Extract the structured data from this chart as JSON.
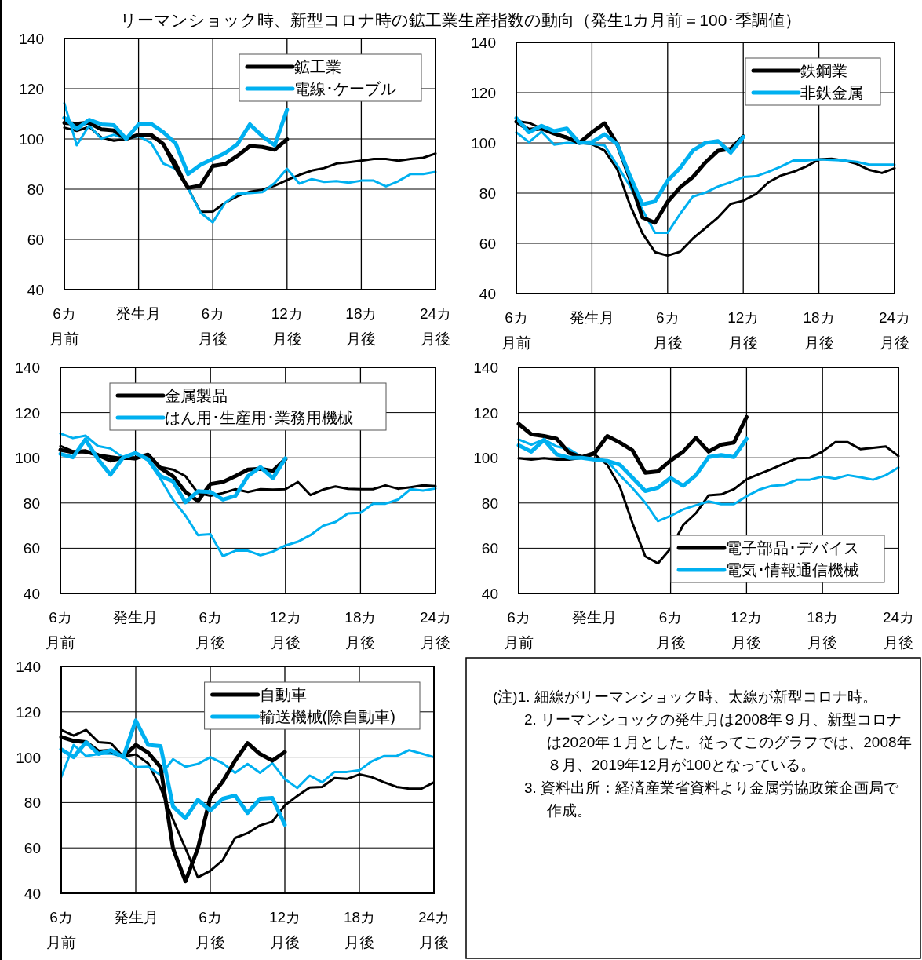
{
  "chart_data": [
    {
      "type": "line",
      "title": "リーマンショック時、新型コロナ時の鉱工業生産指数の動向（発生1カ月前＝100･季調値）",
      "x": [
        -6,
        -5,
        -4,
        -3,
        -2,
        -1,
        0,
        1,
        2,
        3,
        4,
        5,
        6,
        7,
        8,
        9,
        10,
        11,
        12,
        13,
        14,
        15,
        16,
        17,
        18,
        19,
        20,
        21,
        22,
        23,
        24
      ],
      "xlim": [
        -6,
        24
      ],
      "xticks": [
        {
          "value": -6,
          "label": "6カ月前"
        },
        {
          "value": 0,
          "label": "発生月"
        },
        {
          "value": 6,
          "label": "6カ月後"
        },
        {
          "value": 12,
          "label": "12カ月後"
        },
        {
          "value": 18,
          "label": "18カ月後"
        },
        {
          "value": 24,
          "label": "24カ月後"
        }
      ],
      "ylim": [
        40,
        140
      ],
      "yticks": [
        40,
        60,
        80,
        100,
        120,
        140
      ],
      "grid": true,
      "legend": "top right",
      "series": [
        {
          "color": "#000000",
          "values": [
            104.5,
            103.2,
            104.8,
            100.6,
            99.3,
            100,
            101.7,
            101,
            98,
            90.7,
            80.3,
            71,
            71.1,
            74.6,
            77.2,
            79,
            79.8,
            81.4,
            83.6,
            85.7,
            87.4,
            88.4,
            90.2,
            90.7,
            91.3,
            92,
            92,
            91.3,
            92,
            92.5,
            94.2
          ]
        },
        {
          "color": "#00b0f0",
          "values": [
            114.2,
            97.5,
            105.3,
            100.1,
            101.7,
            100,
            101.1,
            98.5,
            90.2,
            88.1,
            80.3,
            70.7,
            66.8,
            74.6,
            78.2,
            78.4,
            78.8,
            82.4,
            88.1,
            82.2,
            84,
            82.9,
            83.2,
            82.6,
            83.4,
            83.4,
            81.1,
            83.2,
            86,
            86,
            86.9
          ]
        },
        {
          "name": "鉱工業",
          "color": "#000000",
          "values": [
            106.4,
            106,
            106.5,
            103.8,
            103.4,
            100,
            101.7,
            101.7,
            98,
            88.6,
            80.5,
            81.4,
            89.2,
            90,
            93.3,
            97.2,
            96.8,
            95.7,
            99.9,
            null,
            null,
            null,
            null,
            null,
            null,
            null,
            null,
            null,
            null,
            null,
            null
          ]
        },
        {
          "name": "電線･ケーブル",
          "color": "#00b0f0",
          "values": [
            108.4,
            104,
            107.6,
            105.8,
            105.5,
            100,
            105.8,
            106.1,
            102.7,
            98.2,
            86,
            89.7,
            92,
            94.4,
            98,
            105.8,
            101.1,
            97.5,
            111.6,
            null,
            null,
            null,
            null,
            null,
            null,
            null,
            null,
            null,
            null,
            null,
            null
          ]
        }
      ]
    },
    {
      "type": "line",
      "x": [
        -6,
        -5,
        -4,
        -3,
        -2,
        -1,
        0,
        1,
        2,
        3,
        4,
        5,
        6,
        7,
        8,
        9,
        10,
        11,
        12,
        13,
        14,
        15,
        16,
        17,
        18,
        19,
        20,
        21,
        22,
        23,
        24
      ],
      "xlim": [
        -6,
        24
      ],
      "xticks": [
        {
          "value": -6,
          "label": "6カ月前"
        },
        {
          "value": 0,
          "label": "発生月"
        },
        {
          "value": 6,
          "label": "6カ月後"
        },
        {
          "value": 12,
          "label": "12カ月後"
        },
        {
          "value": 18,
          "label": "18カ月後"
        },
        {
          "value": 24,
          "label": "24カ月後"
        }
      ],
      "ylim": [
        40,
        140
      ],
      "yticks": [
        40,
        60,
        80,
        100,
        120,
        140
      ],
      "grid": true,
      "legend": "top right",
      "series": [
        {
          "color": "#000000",
          "values": [
            108.7,
            108,
            105.7,
            103.7,
            102.4,
            100,
            99.5,
            96.9,
            89.6,
            75.5,
            64,
            56.5,
            55.1,
            56.7,
            61.9,
            66.1,
            70.3,
            75.7,
            77,
            79.6,
            84.3,
            87,
            88.5,
            90.6,
            93.4,
            93.7,
            93,
            91.6,
            89.2,
            88,
            89.9
          ]
        },
        {
          "color": "#00b0f0",
          "values": [
            104.2,
            100.3,
            104.5,
            99.3,
            100,
            100,
            99.5,
            99,
            91.1,
            82.8,
            73.4,
            64.2,
            64.2,
            71.8,
            78.6,
            80.2,
            82.6,
            84.3,
            86.4,
            86.7,
            88.5,
            90.6,
            93,
            93,
            93.4,
            93.2,
            93,
            92.4,
            91.3,
            91.3,
            91.3
          ]
        },
        {
          "name": "鉄鋼業",
          "color": "#000000",
          "values": [
            108.4,
            105.2,
            105.7,
            103.7,
            102.1,
            100,
            104.2,
            107.8,
            99.5,
            85.9,
            70.3,
            68.2,
            76.5,
            82.3,
            86.4,
            92.2,
            96.9,
            97.6,
            102.6,
            null,
            null,
            null,
            null,
            null,
            null,
            null,
            null,
            null,
            null,
            null,
            null
          ]
        },
        {
          "name": "非鉄金属",
          "color": "#00b0f0",
          "values": [
            109.9,
            104.2,
            106.8,
            104.7,
            105.7,
            100,
            100.3,
            103.4,
            99.5,
            87,
            75.5,
            76.7,
            84.9,
            90.1,
            96.9,
            100,
            100.7,
            96.1,
            102.4,
            null,
            null,
            null,
            null,
            null,
            null,
            null,
            null,
            null,
            null,
            null,
            null
          ]
        }
      ]
    },
    {
      "type": "line",
      "x": [
        -6,
        -5,
        -4,
        -3,
        -2,
        -1,
        0,
        1,
        2,
        3,
        4,
        5,
        6,
        7,
        8,
        9,
        10,
        11,
        12,
        13,
        14,
        15,
        16,
        17,
        18,
        19,
        20,
        21,
        22,
        23,
        24
      ],
      "xlim": [
        -6,
        24
      ],
      "xticks": [
        {
          "value": -6,
          "label": "6カ月前"
        },
        {
          "value": 0,
          "label": "発生月"
        },
        {
          "value": 6,
          "label": "6カ月後"
        },
        {
          "value": 12,
          "label": "12カ月後"
        },
        {
          "value": 18,
          "label": "18カ月後"
        },
        {
          "value": 24,
          "label": "24カ月後"
        }
      ],
      "ylim": [
        40,
        140
      ],
      "yticks": [
        40,
        60,
        80,
        100,
        120,
        140
      ],
      "grid": true,
      "legend": "top",
      "series": [
        {
          "color": "#000000",
          "values": [
            105.2,
            102.9,
            102.3,
            101.4,
            100.6,
            99.8,
            99.4,
            101.7,
            95.9,
            94.8,
            91.9,
            84.4,
            83.2,
            84.4,
            86.1,
            84.9,
            86.1,
            85.9,
            86.1,
            89.3,
            83.5,
            85.9,
            87.3,
            86.3,
            86.1,
            86.1,
            87.8,
            86.3,
            87,
            87.8,
            87.5
          ]
        },
        {
          "color": "#00b0f0",
          "values": [
            110.7,
            108.7,
            109.8,
            105.2,
            104.1,
            100.2,
            102.1,
            98.8,
            90.7,
            81.5,
            74.5,
            65.8,
            66.2,
            56.5,
            58.9,
            58.9,
            56.9,
            58.5,
            61.2,
            62.9,
            65.8,
            69.9,
            71.6,
            75.4,
            75.7,
            79.7,
            79.7,
            81.5,
            86.1,
            85.5,
            86.4
          ]
        },
        {
          "name": "金属製品",
          "color": "#000000",
          "values": [
            103.5,
            102.5,
            102.9,
            101.2,
            98.8,
            100,
            99.8,
            101.4,
            95.4,
            91.9,
            84.9,
            80.9,
            88.4,
            89.3,
            91.9,
            94.8,
            95.1,
            94.2,
            99.4,
            null,
            null,
            null,
            null,
            null,
            null,
            null,
            null,
            null,
            null,
            null,
            null
          ]
        },
        {
          "name": "はん用･生産用･業務用機械",
          "color": "#00b0f0",
          "values": [
            101.7,
            100.2,
            108.1,
            99.4,
            92.5,
            100,
            102.1,
            99.4,
            91.9,
            89.6,
            80.3,
            85.2,
            84.9,
            81.5,
            83.2,
            91.9,
            95.9,
            91,
            99.8,
            null,
            null,
            null,
            null,
            null,
            null,
            null,
            null,
            null,
            null,
            null,
            null
          ]
        }
      ]
    },
    {
      "type": "line",
      "x": [
        -6,
        -5,
        -4,
        -3,
        -2,
        -1,
        0,
        1,
        2,
        3,
        4,
        5,
        6,
        7,
        8,
        9,
        10,
        11,
        12,
        13,
        14,
        15,
        16,
        17,
        18,
        19,
        20,
        21,
        22,
        23,
        24
      ],
      "xlim": [
        -6,
        24
      ],
      "xticks": [
        {
          "value": -6,
          "label": "6カ月前"
        },
        {
          "value": 0,
          "label": "発生月"
        },
        {
          "value": 6,
          "label": "6カ月後"
        },
        {
          "value": 12,
          "label": "12カ月後"
        },
        {
          "value": 18,
          "label": "18カ月後"
        },
        {
          "value": 24,
          "label": "24カ月後"
        }
      ],
      "ylim": [
        40,
        140
      ],
      "yticks": [
        40,
        60,
        80,
        100,
        120,
        140
      ],
      "grid": true,
      "legend": "bottom right",
      "series": [
        {
          "color": "#000000",
          "values": [
            99.8,
            99.2,
            99.8,
            99.2,
            99.2,
            100,
            101.5,
            96.9,
            87.1,
            70.9,
            56.4,
            53.3,
            59.9,
            70.3,
            75.5,
            83.4,
            83.8,
            86.1,
            90.5,
            92.8,
            95.1,
            97.5,
            99.8,
            100,
            102.7,
            106.9,
            106.9,
            103.8,
            104.4,
            105,
            100.7
          ]
        },
        {
          "color": "#00b0f0",
          "values": [
            108.1,
            105.8,
            108.1,
            105,
            103.8,
            100.3,
            99.5,
            98.6,
            92.3,
            86.5,
            80.1,
            72,
            74.3,
            77.2,
            79,
            80.7,
            79.5,
            79.5,
            83,
            85.9,
            87.6,
            88,
            90.3,
            90.3,
            91.7,
            90.8,
            92.3,
            91.4,
            90.3,
            92.3,
            95.7
          ]
        },
        {
          "name": "電子部品･デバイス",
          "color": "#000000",
          "values": [
            115,
            110.4,
            109.6,
            108.4,
            102.1,
            100.3,
            102.1,
            109.6,
            106.7,
            103.2,
            93.4,
            94,
            98.8,
            102.7,
            108.8,
            102.7,
            105.8,
            106.7,
            118,
            null,
            null,
            null,
            null,
            null,
            null,
            null,
            null,
            null,
            null,
            null,
            null
          ]
        },
        {
          "name": "電気･情報通信機械",
          "color": "#00b0f0",
          "values": [
            105.5,
            102.7,
            107.9,
            101.5,
            100,
            100,
            99.2,
            98.6,
            96.9,
            91.1,
            85.3,
            86.8,
            91.1,
            87.6,
            92.3,
            100.3,
            101.2,
            100.3,
            108.4,
            null,
            null,
            null,
            null,
            null,
            null,
            null,
            null,
            null,
            null,
            null,
            null
          ]
        }
      ]
    },
    {
      "type": "line",
      "x": [
        -6,
        -5,
        -4,
        -3,
        -2,
        -1,
        0,
        1,
        2,
        3,
        4,
        5,
        6,
        7,
        8,
        9,
        10,
        11,
        12,
        13,
        14,
        15,
        16,
        17,
        18,
        19,
        20,
        21,
        22,
        23,
        24
      ],
      "xlim": [
        -6,
        24
      ],
      "xticks": [
        {
          "value": -6,
          "label": "6カ月前"
        },
        {
          "value": 0,
          "label": "発生月"
        },
        {
          "value": 6,
          "label": "6カ月後"
        },
        {
          "value": 12,
          "label": "12カ月後"
        },
        {
          "value": 18,
          "label": "18カ月後"
        },
        {
          "value": 24,
          "label": "24カ月後"
        }
      ],
      "ylim": [
        40,
        140
      ],
      "yticks": [
        40,
        60,
        80,
        100,
        120,
        140
      ],
      "grid": true,
      "legend": "top right",
      "series": [
        {
          "color": "#000000",
          "values": [
            112,
            109.5,
            112,
            106.6,
            106.2,
            100.2,
            101.2,
            97.3,
            86.4,
            72.5,
            59.8,
            47,
            49.9,
            54.6,
            64.4,
            66.5,
            69.9,
            71.6,
            78.8,
            82.9,
            86.6,
            86.9,
            90.8,
            90.4,
            92.4,
            91.2,
            88.9,
            86.9,
            86.1,
            86.1,
            88.9
          ]
        },
        {
          "color": "#00b0f0",
          "values": [
            91.2,
            105.4,
            100.5,
            101.4,
            101.6,
            100.2,
            95.6,
            95.8,
            92.1,
            99.1,
            95.8,
            97,
            100,
            97.3,
            93.1,
            97,
            93.1,
            97.3,
            90.4,
            86.4,
            91.9,
            88.9,
            93.5,
            93.5,
            94.2,
            98.2,
            100.5,
            100.5,
            103.1,
            101.6,
            100
          ]
        },
        {
          "name": "自動車",
          "color": "#000000",
          "values": [
            108.9,
            107.2,
            106.6,
            102.5,
            102.8,
            100.2,
            105.4,
            102,
            95.6,
            59.8,
            45.3,
            59.8,
            82.3,
            89.2,
            98.5,
            106.2,
            101.4,
            98.5,
            102.3,
            null,
            null,
            null,
            null,
            null,
            null,
            null,
            null,
            null,
            null,
            null,
            null
          ]
        },
        {
          "name": "輸送機械(除自動車)",
          "color": "#00b0f0",
          "values": [
            103.5,
            100,
            106.6,
            101.4,
            103.1,
            100,
            116.2,
            105.4,
            104.9,
            78.3,
            73.1,
            81.2,
            76.5,
            81.7,
            83.1,
            75.4,
            81.7,
            82,
            70.2,
            null,
            null,
            null,
            null,
            null,
            null,
            null,
            null,
            null,
            null,
            null,
            null
          ]
        }
      ]
    },
    {
      "type": "other",
      "annotations": [
        "(注)1. 細線がリーマンショック時、太線が新型コロナ時。",
        "2. リーマンショックの発生月は2008年９月、新型コロナは2020年１月とした。従ってこのグラフでは、2008年８月、2019年12月が100となっている。",
        "3. 資料出所：経済産業省資料より金属労協政策企画局で作成。"
      ]
    }
  ]
}
